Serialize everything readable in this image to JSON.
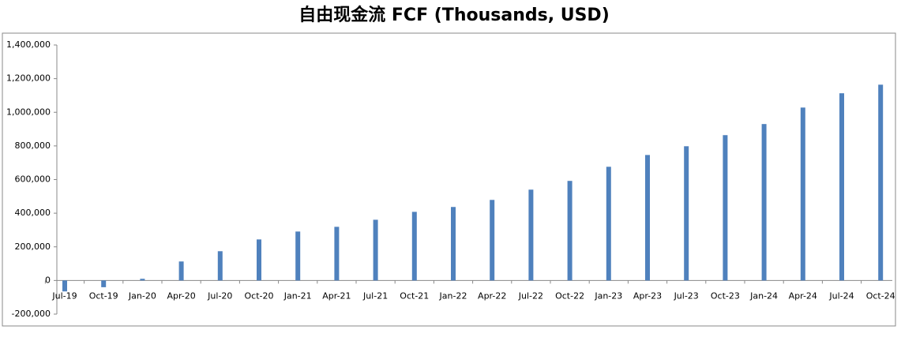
{
  "chart_data": {
    "type": "bar",
    "title": "自由现金流 FCF (Thousands, USD)",
    "categories": [
      "Jul-19",
      "Oct-19",
      "Jan-20",
      "Apr-20",
      "Jul-20",
      "Oct-20",
      "Jan-21",
      "Apr-21",
      "Jul-21",
      "Oct-21",
      "Jan-22",
      "Apr-22",
      "Jul-22",
      "Oct-22",
      "Jan-23",
      "Apr-23",
      "Jul-23",
      "Oct-23",
      "Jan-24",
      "Apr-24",
      "Jul-24",
      "Oct-24"
    ],
    "values": [
      -65000,
      -40000,
      10000,
      113000,
      174000,
      244000,
      291000,
      319000,
      361000,
      408000,
      437000,
      479000,
      540000,
      592000,
      676000,
      746000,
      798000,
      864000,
      930000,
      1028000,
      1113000,
      1164000
    ],
    "color": "#4f81bd",
    "ylim": [
      -200000,
      1400000
    ],
    "yticks": [
      {
        "value": -200000,
        "label": "-200,000"
      },
      0,
      {
        "value": 200000,
        "label": "200,000"
      },
      {
        "value": 400000,
        "label": "400,000"
      },
      {
        "value": 600000,
        "label": "600,000"
      },
      {
        "value": 800000,
        "label": "800,000"
      },
      {
        "value": 1000000,
        "label": "1,000,000"
      },
      {
        "value": 1200000,
        "label": "1,200,000"
      },
      {
        "value": 1400000,
        "label": "1,400,000"
      }
    ],
    "grid": false
  }
}
